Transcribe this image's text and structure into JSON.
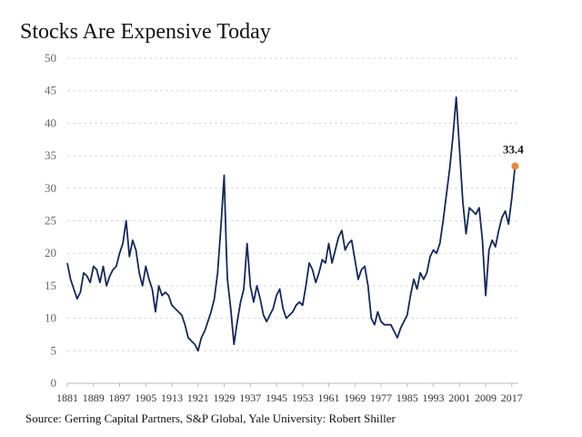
{
  "title": "Stocks Are Expensive Today",
  "source": "Source: Gerring Capital Partners, S&P Global, Yale University: Robert Shiller",
  "chart_data": {
    "type": "line",
    "title": "Stocks Are Expensive Today",
    "xlabel": "",
    "ylabel": "",
    "xlim": [
      1881,
      2019
    ],
    "ylim": [
      0,
      50
    ],
    "yticks": [
      0,
      5,
      10,
      15,
      20,
      25,
      30,
      35,
      40,
      45,
      50
    ],
    "xticks": [
      "1881",
      "1889",
      "1897",
      "1905",
      "1913",
      "1921",
      "1929",
      "1937",
      "1945",
      "1953",
      "1961",
      "1969",
      "1977",
      "1985",
      "1993",
      "2001",
      "2009",
      "2017"
    ],
    "grid": "horizontal dashed",
    "line_color": "#14285e",
    "marker_color": "#e8873a",
    "series": [
      {
        "x": [
          1881,
          1882,
          1883,
          1884,
          1885,
          1886,
          1887,
          1888,
          1889,
          1890,
          1891,
          1892,
          1893,
          1894,
          1895,
          1896,
          1897,
          1898,
          1899,
          1900,
          1901,
          1902,
          1903,
          1904,
          1905,
          1906,
          1907,
          1908,
          1909,
          1910,
          1911,
          1912,
          1913,
          1914,
          1915,
          1916,
          1917,
          1918,
          1919,
          1920,
          1921,
          1922,
          1923,
          1924,
          1925,
          1926,
          1927,
          1928,
          1929,
          1929.7,
          1930,
          1931,
          1932,
          1933,
          1934,
          1935,
          1936,
          1937,
          1938,
          1939,
          1940,
          1941,
          1942,
          1943,
          1944,
          1945,
          1946,
          1947,
          1948,
          1949,
          1950,
          1951,
          1952,
          1953,
          1954,
          1955,
          1956,
          1957,
          1958,
          1959,
          1960,
          1961,
          1962,
          1963,
          1964,
          1965,
          1966,
          1967,
          1968,
          1969,
          1970,
          1971,
          1972,
          1973,
          1974,
          1975,
          1976,
          1977,
          1978,
          1979,
          1980,
          1981,
          1982,
          1983,
          1984,
          1985,
          1986,
          1987,
          1988,
          1989,
          1990,
          1991,
          1992,
          1993,
          1994,
          1995,
          1996,
          1997,
          1998,
          1999,
          2000,
          2001,
          2002,
          2003,
          2004,
          2005,
          2006,
          2007,
          2008,
          2009,
          2010,
          2011,
          2012,
          2013,
          2014,
          2015,
          2016,
          2017,
          2018
        ],
        "values": [
          18.5,
          16.0,
          14.5,
          13.0,
          14.0,
          17.0,
          16.5,
          15.5,
          18.0,
          17.5,
          15.5,
          18.0,
          15.0,
          16.5,
          17.5,
          18.0,
          20.0,
          21.5,
          25.0,
          19.5,
          22.0,
          20.5,
          17.0,
          15.0,
          18.0,
          16.0,
          14.5,
          11.0,
          15.0,
          13.5,
          14.0,
          13.5,
          12.0,
          11.5,
          11.0,
          10.5,
          9.0,
          7.0,
          6.5,
          6.0,
          5.0,
          7.0,
          8.0,
          9.5,
          11.0,
          13.0,
          17.0,
          24.0,
          32.0,
          20.0,
          16.0,
          11.5,
          6.0,
          9.5,
          12.5,
          14.5,
          21.5,
          15.0,
          12.5,
          15.0,
          13.0,
          10.5,
          9.5,
          10.5,
          11.5,
          13.5,
          14.5,
          11.5,
          10.0,
          10.5,
          11.0,
          12.0,
          12.5,
          12.0,
          15.0,
          18.5,
          17.5,
          15.5,
          17.0,
          19.0,
          18.5,
          21.5,
          18.5,
          20.5,
          22.5,
          23.5,
          20.5,
          21.5,
          22.0,
          19.0,
          16.0,
          17.5,
          18.0,
          15.0,
          10.0,
          9.0,
          11.0,
          9.5,
          9.0,
          9.0,
          9.0,
          8.0,
          7.0,
          8.5,
          9.5,
          10.5,
          13.5,
          16.0,
          14.5,
          17.0,
          16.0,
          17.0,
          19.5,
          20.5,
          20.0,
          21.5,
          25.0,
          29.0,
          33.0,
          38.0,
          44.0,
          36.0,
          28.0,
          23.0,
          27.0,
          26.5,
          26.0,
          27.0,
          22.0,
          13.5,
          20.5,
          22.0,
          21.0,
          23.5,
          25.5,
          26.5,
          24.5,
          28.5,
          33.4
        ]
      }
    ],
    "annotation": {
      "label": "33.4",
      "x": 2018,
      "y": 33.4
    }
  }
}
